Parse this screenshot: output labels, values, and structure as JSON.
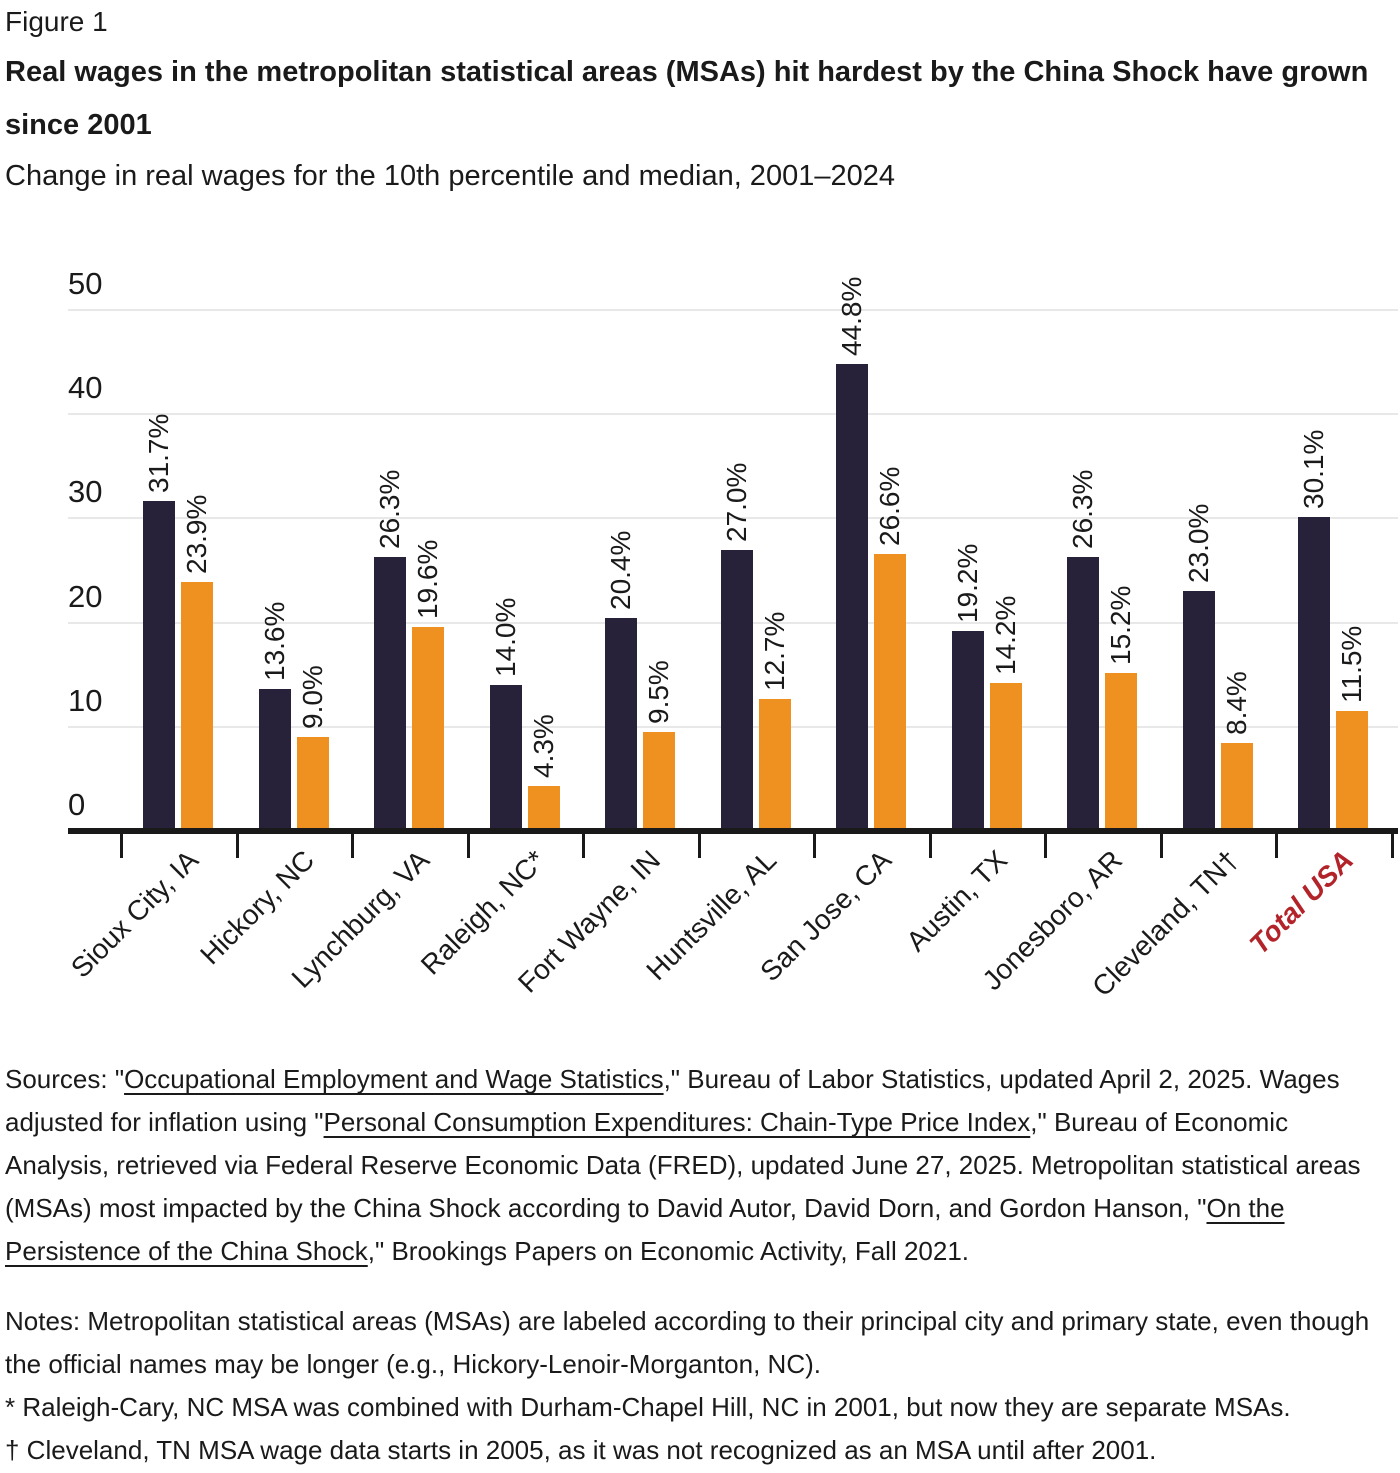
{
  "figure_label": "Figure 1",
  "title": "Real wages in the metropolitan statistical areas (MSAs) hit hardest by the China Shock have grown since 2001",
  "subtitle": "Change in real wages for the 10th percentile and median, 2001–2024",
  "chart_data": {
    "type": "bar",
    "categories": [
      "Sioux City, IA",
      "Hickory, NC",
      "Lynchburg, VA",
      "Raleigh, NC*",
      "Fort Wayne, IN",
      "Huntsville, AL",
      "San Jose, CA",
      "Austin, TX",
      "Jonesboro, AR",
      "Cleveland, TN†",
      "Total USA"
    ],
    "series": [
      {
        "name": "10th percentile",
        "color": "#272139",
        "values": [
          31.7,
          13.6,
          26.3,
          14.0,
          20.4,
          27.0,
          44.8,
          19.2,
          26.3,
          23.0,
          30.1
        ]
      },
      {
        "name": "Median",
        "color": "#ef9120",
        "values": [
          23.9,
          9.0,
          19.6,
          4.3,
          9.5,
          12.7,
          26.6,
          14.2,
          15.2,
          8.4,
          11.5
        ]
      }
    ],
    "value_label_format": "{value}%",
    "value_label_rotation": 90,
    "ylim": [
      0,
      50
    ],
    "yticks": [
      0,
      10,
      20,
      30,
      40,
      50
    ],
    "grid": true,
    "legend_position": "none",
    "x_label_rotation": 45,
    "highlight_category": {
      "label": "Total USA",
      "color": "#b2232a",
      "style": "bold italic"
    }
  },
  "sources": {
    "segments": [
      {
        "text": "Sources: \"",
        "link": false
      },
      {
        "text": "Occupational Employment and Wage Statistics",
        "link": true
      },
      {
        "text": ",\" Bureau of Labor Statistics, updated April 2, 2025. Wages adjusted for inflation using \"",
        "link": false
      },
      {
        "text": "Personal Consumption Expenditures: Chain-Type Price Index",
        "link": true
      },
      {
        "text": ",\" Bureau of Economic Analysis, retrieved via Federal Reserve Economic Data (FRED), updated June 27, 2025. Metropolitan statistical areas (MSAs) most impacted by the China Shock according to David Autor, David Dorn, and Gordon Hanson, \"",
        "link": false
      },
      {
        "text": "On the Persistence of the China Shock",
        "link": true
      },
      {
        "text": ",\" Brookings Papers on Economic Activity, Fall 2021.",
        "link": false
      }
    ]
  },
  "notes": {
    "lines": [
      "Notes: Metropolitan statistical areas (MSAs) are labeled according to their principal city and primary state, even though the official names may be longer (e.g., Hickory-Lenoir-Morganton, NC).",
      "* Raleigh-Cary, NC MSA was combined with Durham-Chapel Hill, NC in 2001, but now they are separate MSAs.",
      "† Cleveland, TN MSA wage data starts in 2005, as it was not recognized as an MSA until after 2001."
    ]
  }
}
